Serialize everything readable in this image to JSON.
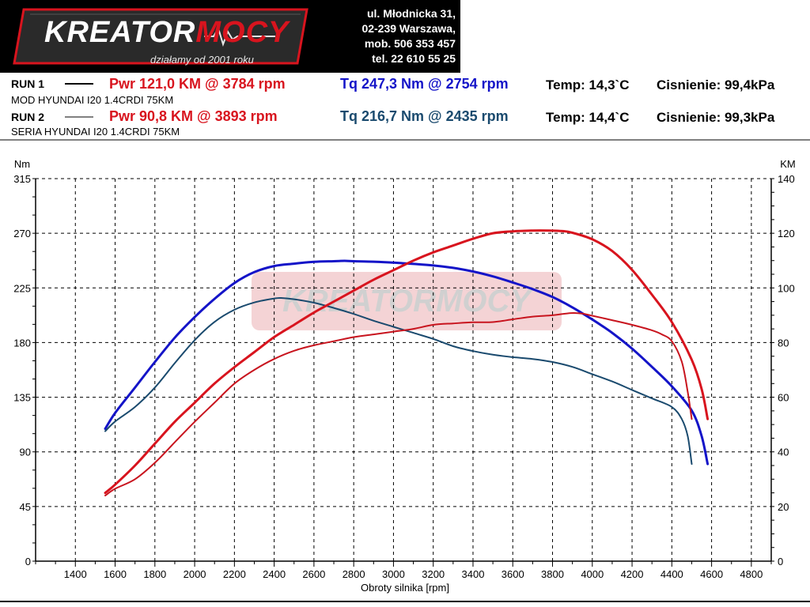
{
  "header": {
    "logo": {
      "word_white": "KREATOR",
      "word_red": "MOCY",
      "slogan": "działamy od 2001 roku"
    },
    "contact": [
      "ul. Młodnicka 31,",
      "02-239  Warszawa,",
      "mob.  506 353 457",
      "tel.  22 610 55 25"
    ]
  },
  "runs": [
    {
      "label": "RUN 1",
      "vehicle": "MOD HYUNDAI I20 1.4CRDI 75KM",
      "pwr": "Pwr  121,0 KM @ 3784 rpm",
      "tq": "Tq 247,3 Nm @ 2754 rpm",
      "temp": "Temp: 14,3`C",
      "pressure": "Cisnienie: 99,4kPa",
      "tq_color": "#1414c8"
    },
    {
      "label": "RUN 2",
      "vehicle": "SERIA HYUNDAI I20 1.4CRDI 75KM",
      "pwr": "Pwr  90,8 KM @ 3893 rpm",
      "tq": "Tq 216,7 Nm @ 2435 rpm",
      "temp": "Temp: 14,4`C",
      "pressure": "Cisnienie: 99,3kPa",
      "tq_color": "#1a4a6e"
    }
  ],
  "chart_data": {
    "type": "line",
    "xlabel": "Obroty silnika [rpm]",
    "ylabel_left": "Nm",
    "ylabel_right": "KM",
    "xlim": [
      1200,
      4900
    ],
    "x_ticks": [
      1400,
      1600,
      1800,
      2000,
      2200,
      2400,
      2600,
      2800,
      3000,
      3200,
      3400,
      3600,
      3800,
      4000,
      4200,
      4400,
      4600,
      4800
    ],
    "ylim_left": [
      0,
      315
    ],
    "y_ticks_left": [
      0,
      45,
      90,
      135,
      180,
      225,
      270,
      315
    ],
    "ylim_right": [
      0,
      140
    ],
    "y_ticks_right": [
      0,
      20,
      40,
      60,
      80,
      100,
      120,
      140
    ],
    "grid": true,
    "watermark": {
      "word_white": "KREATOR",
      "word_red": "MOCY"
    },
    "series": [
      {
        "axis": "left",
        "color": "#1414c8",
        "width": 3,
        "x": [
          1550,
          1600,
          1700,
          1800,
          1900,
          2000,
          2100,
          2200,
          2300,
          2400,
          2500,
          2600,
          2700,
          2754,
          2800,
          2900,
          3000,
          3100,
          3200,
          3300,
          3400,
          3500,
          3600,
          3700,
          3800,
          3900,
          4000,
          4100,
          4200,
          4300,
          4400,
          4500,
          4550,
          4580
        ],
        "values": [
          109,
          122,
          143,
          164,
          184,
          201,
          216,
          229,
          238,
          243,
          245,
          246.5,
          247,
          247.3,
          247,
          246.6,
          245.8,
          244.8,
          243.5,
          241.5,
          238.5,
          234.5,
          229.5,
          224,
          217.5,
          209,
          199,
          188,
          175,
          160,
          144,
          124,
          103,
          80
        ]
      },
      {
        "axis": "left",
        "color": "#1a4a6e",
        "width": 2,
        "x": [
          1550,
          1600,
          1700,
          1800,
          1900,
          2000,
          2100,
          2200,
          2300,
          2400,
          2435,
          2500,
          2600,
          2700,
          2800,
          2900,
          3000,
          3100,
          3200,
          3300,
          3400,
          3500,
          3600,
          3700,
          3800,
          3900,
          4000,
          4100,
          4200,
          4300,
          4400,
          4450,
          4480,
          4500
        ],
        "values": [
          107,
          115,
          127,
          143,
          163,
          182,
          197,
          207,
          213,
          216.3,
          216.7,
          215.7,
          212.8,
          208.5,
          203.6,
          198,
          193,
          188,
          183,
          177,
          173,
          170,
          168,
          166.5,
          164,
          160,
          154,
          148,
          141,
          134,
          127,
          117,
          103,
          80
        ]
      },
      {
        "axis": "right",
        "color": "#d8141e",
        "width": 3,
        "x": [
          1550,
          1600,
          1700,
          1800,
          1900,
          2000,
          2100,
          2200,
          2300,
          2400,
          2500,
          2600,
          2700,
          2800,
          2900,
          3000,
          3100,
          3200,
          3300,
          3400,
          3500,
          3600,
          3700,
          3784,
          3850,
          3900,
          4000,
          4100,
          4200,
          4300,
          4400,
          4500,
          4550,
          4580
        ],
        "values": [
          25,
          28,
          35,
          43,
          51,
          58,
          65,
          71,
          76.5,
          82,
          86.5,
          91,
          95,
          99,
          103,
          106.5,
          110,
          113,
          115.5,
          118,
          120,
          120.7,
          121,
          121,
          120.8,
          120.2,
          117.8,
          113.5,
          106.6,
          97.5,
          87.5,
          73.7,
          63,
          52
        ]
      },
      {
        "axis": "right",
        "color": "#c8141e",
        "width": 2,
        "x": [
          1550,
          1600,
          1700,
          1800,
          1900,
          2000,
          2100,
          2200,
          2300,
          2400,
          2500,
          2600,
          2700,
          2800,
          2900,
          3000,
          3100,
          3200,
          3300,
          3400,
          3500,
          3600,
          3700,
          3800,
          3893,
          3950,
          4000,
          4100,
          4200,
          4300,
          4350,
          4400,
          4450,
          4480,
          4500
        ],
        "values": [
          24,
          26.5,
          30,
          36,
          43.5,
          51,
          58,
          65,
          70,
          74,
          77,
          79,
          80.5,
          82,
          83,
          84,
          85,
          86.5,
          87,
          87.4,
          87.5,
          88.5,
          89.5,
          90,
          90.8,
          90.6,
          89.8,
          88.2,
          86.5,
          84.5,
          83,
          80.5,
          73,
          62,
          52
        ]
      }
    ]
  }
}
